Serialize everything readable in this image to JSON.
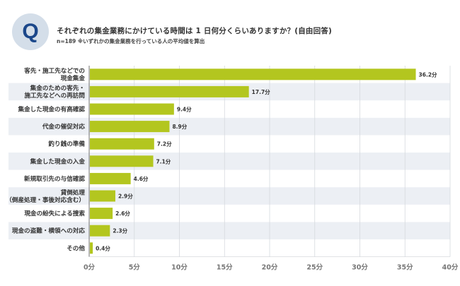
{
  "header": {
    "badge": "Q",
    "title": "それぞれの集金業務にかけている時間は 1 日何分くらいありますか？(自由回答)",
    "subtitle": "n=189 ※いずれかの集金業務を行っている人の平均値を算出"
  },
  "colors": {
    "bar": "#b3c61f",
    "band": "#eceff4",
    "grid": "#d6d9de",
    "axis": "#888888",
    "badge_bg": "#d4dee9",
    "badge_text": "#1b478a"
  },
  "chart_data": {
    "type": "bar",
    "orientation": "horizontal",
    "title": "それぞれの集金業務にかけている時間は 1 日何分くらいありますか？(自由回答)",
    "xlabel": "",
    "ylabel": "",
    "unit": "分",
    "xlim": [
      0,
      40
    ],
    "grid": true,
    "categories": [
      [
        "客先・施工先などでの",
        "現金集金"
      ],
      [
        "集金のための客先・",
        "施工先などへの再訪問"
      ],
      [
        "集金した現金の有高確認"
      ],
      [
        "代金の催促対応"
      ],
      [
        "釣り銭の準備"
      ],
      [
        "集金した現金の入金"
      ],
      [
        "新規取引先の与信確認"
      ],
      [
        "貸倒処理",
        "（倒産処理・事後対応含む）"
      ],
      [
        "現金の紛失による捜索"
      ],
      [
        "現金の盗難・横領への対応"
      ],
      [
        "その他"
      ]
    ],
    "values": [
      36.2,
      17.7,
      9.4,
      8.9,
      7.2,
      7.1,
      4.6,
      2.9,
      2.6,
      2.3,
      0.4
    ],
    "value_labels": [
      "36.2分",
      "17.7分",
      "9.4分",
      "8.9分",
      "7.2分",
      "7.1分",
      "4.6分",
      "2.9分",
      "2.6分",
      "2.3分",
      "0.4分"
    ],
    "ticks": [
      0,
      5,
      10,
      15,
      20,
      25,
      30,
      35,
      40
    ],
    "tick_labels": [
      "0分",
      "5分",
      "10分",
      "15分",
      "20分",
      "25分",
      "30分",
      "35分",
      "40分"
    ]
  }
}
